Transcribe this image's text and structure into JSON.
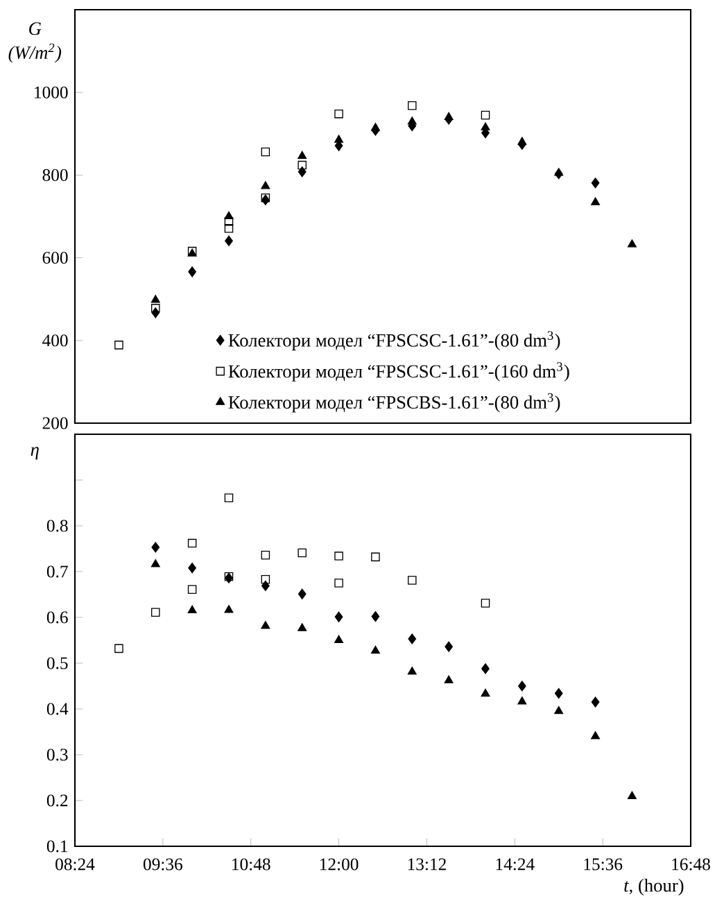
{
  "chart_data": [
    {
      "type": "scatter",
      "ylabel": "G (W/m$^{2}$)",
      "xlim": [
        8.4,
        16.8
      ],
      "ylim": [
        200,
        1200
      ],
      "yticks": [
        200,
        400,
        600,
        800,
        1000
      ],
      "tick_labels": "y",
      "legend": "bottom",
      "series": [
        {
          "name": "Колектори модел “FPSCSC-1.61”-(80 dm$^{3}$)",
          "color": "#000000",
          "marker": "diamond",
          "x": [
            9.5,
            10,
            10.5,
            11,
            11.5,
            12,
            12.5,
            13,
            13.5,
            14,
            14.5,
            15,
            15.5
          ],
          "values": [
            467,
            566,
            641,
            740,
            808,
            871,
            908,
            919,
            935,
            902,
            874,
            803,
            781
          ]
        },
        {
          "name": "Колектори модел “FPSCSC-1.61”-(160 dm$^{3}$)",
          "color": "#000000",
          "marker": "square",
          "x": [
            9,
            9.5,
            10,
            10.5,
            10.5,
            11,
            11,
            11.5,
            12,
            13,
            14
          ],
          "values": [
            389,
            478,
            616,
            688,
            671,
            856,
            745,
            824,
            948,
            968,
            945
          ]
        },
        {
          "name": "Колектори модел “FPSCBS-1.61”-(80 dm$^{3}$)",
          "color": "#000000",
          "marker": "triangle",
          "x": [
            9.5,
            10,
            10.5,
            11,
            11.5,
            12,
            12.5,
            13,
            13.5,
            14,
            14.5,
            15,
            15.5,
            16
          ],
          "values": [
            498,
            610,
            700,
            773,
            846,
            885,
            914,
            929,
            940,
            915,
            880,
            805,
            734,
            632
          ]
        }
      ]
    },
    {
      "type": "scatter",
      "ylabel": "η",
      "xlabel": "*t*, (hour)",
      "xlim": [
        8.4,
        16.8
      ],
      "ylim": [
        0.1,
        1.0
      ],
      "yticks": [
        0.1,
        0.2,
        0.3,
        0.4,
        0.5,
        0.6,
        0.7,
        0.8,
        {
          "value": 0.9,
          "label": null
        }
      ],
      "xticks": [
        {
          "value": 8.4,
          "label": "08:24"
        },
        {
          "value": 9.6,
          "label": "09:36"
        },
        {
          "value": 10.8,
          "label": "10:48"
        },
        {
          "value": 12,
          "label": "12:00"
        },
        {
          "value": 13.2,
          "label": "13:12"
        },
        {
          "value": 14.4,
          "label": "14:24"
        },
        {
          "value": 15.6,
          "label": "15:36"
        },
        {
          "value": 16.8,
          "label": "16:48"
        }
      ],
      "series": [
        {
          "color": "#000000",
          "marker": "diamond",
          "x": [
            9.5,
            10,
            10.5,
            11,
            11.5,
            12,
            12.5,
            13,
            13.5,
            14,
            14.5,
            15,
            15.5
          ],
          "values": [
            0.753,
            0.708,
            0.686,
            0.669,
            0.651,
            0.601,
            0.602,
            0.553,
            0.536,
            0.488,
            0.45,
            0.434,
            0.415
          ]
        },
        {
          "color": "#000000",
          "marker": "square",
          "x": [
            9,
            9.5,
            10,
            10,
            10.5,
            10.5,
            11,
            11,
            11.5,
            12,
            12,
            12.5,
            13,
            14
          ],
          "values": [
            0.532,
            0.611,
            0.762,
            0.661,
            0.861,
            0.689,
            0.736,
            0.683,
            0.741,
            0.734,
            0.675,
            0.732,
            0.681,
            0.631
          ]
        },
        {
          "color": "#000000",
          "marker": "triangle",
          "x": [
            9.5,
            10,
            10.5,
            11,
            11.5,
            12,
            12.5,
            13,
            13.5,
            14,
            14.5,
            15,
            15.5,
            16
          ],
          "values": [
            0.716,
            0.615,
            0.616,
            0.581,
            0.576,
            0.55,
            0.527,
            0.481,
            0.462,
            0.433,
            0.416,
            0.395,
            0.34,
            0.209
          ]
        }
      ]
    }
  ]
}
